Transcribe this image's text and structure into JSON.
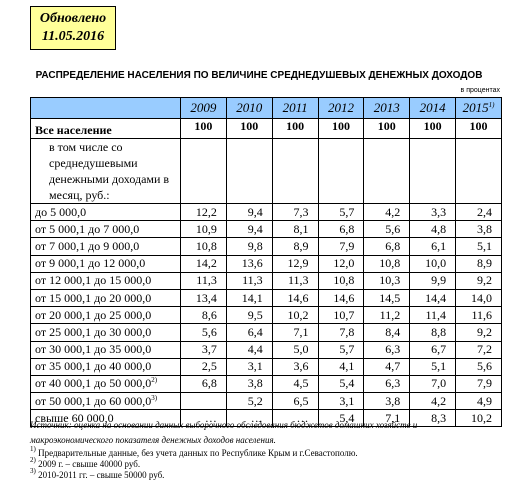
{
  "badge": {
    "line1": "Обновлено",
    "line2": "11.05.2016"
  },
  "title": "РАСПРЕДЕЛЕНИЕ НАСЕЛЕНИЯ ПО ВЕЛИЧИНЕ СРЕДНЕДУШЕВЫХ ДЕНЕЖНЫХ ДОХОДОВ",
  "units": "в процентах",
  "table": {
    "header": [
      {
        "text": "2009"
      },
      {
        "text": "2010"
      },
      {
        "text": "2011"
      },
      {
        "text": "2012"
      },
      {
        "text": "2013"
      },
      {
        "text": "2014"
      },
      {
        "text": "2015",
        "note": "1)"
      }
    ],
    "rows": [
      {
        "label": "Все население",
        "cells": [
          "100",
          "100",
          "100",
          "100",
          "100",
          "100",
          "100"
        ]
      },
      {
        "label": "в том числе со среднедушевыми денежными доходами в месяц, руб.:",
        "cells": [
          null,
          null,
          null,
          null,
          null,
          null,
          null
        ]
      },
      {
        "label": "до 5 000,0",
        "cells": [
          "12,2",
          "9,4",
          "7,3",
          "5,7",
          "4,2",
          "3,3",
          "2,4"
        ]
      },
      {
        "label": "от 5 000,1 до 7 000,0",
        "cells": [
          "10,9",
          "9,4",
          "8,1",
          "6,8",
          "5,6",
          "4,8",
          "3,8"
        ]
      },
      {
        "label": "от 7 000,1 до 9 000,0",
        "cells": [
          "10,8",
          "9,8",
          "8,9",
          "7,9",
          "6,8",
          "6,1",
          "5,1"
        ]
      },
      {
        "label": "от 9 000,1 до 12 000,0",
        "cells": [
          "14,2",
          "13,6",
          "12,9",
          "12,0",
          "10,8",
          "10,0",
          "8,9"
        ]
      },
      {
        "label": "от 12 000,1 до 15 000,0",
        "cells": [
          "11,3",
          "11,3",
          "11,3",
          "10,8",
          "10,3",
          "9,9",
          "9,2"
        ]
      },
      {
        "label": "от 15 000,1 до 20 000,0",
        "cells": [
          "13,4",
          "14,1",
          "14,6",
          "14,6",
          "14,5",
          "14,4",
          "14,0"
        ]
      },
      {
        "label": "от 20 000,1 до 25 000,0",
        "cells": [
          "8,6",
          "9,5",
          "10,2",
          "10,7",
          "11,2",
          "11,4",
          "11,6"
        ]
      },
      {
        "label": "от 25 000,1 до 30 000,0",
        "cells": [
          "5,6",
          "6,4",
          "7,1",
          "7,8",
          "8,4",
          "8,8",
          "9,2"
        ]
      },
      {
        "label": "от 30 000,1 до 35 000,0",
        "cells": [
          "3,7",
          "4,4",
          "5,0",
          "5,7",
          "6,3",
          "6,7",
          "7,2"
        ]
      },
      {
        "label": "от 35 000,1 до 40 000,0",
        "cells": [
          "2,5",
          "3,1",
          "3,6",
          "4,1",
          "4,7",
          "5,1",
          "5,6"
        ]
      },
      {
        "label": "от 40 000,1 до 50 000,0",
        "note": "2)",
        "cells": [
          "6,8",
          "3,8",
          "4,5",
          "5,4",
          "6,3",
          "7,0",
          "7,9"
        ]
      },
      {
        "label": "от 50 000,1 до 60 000,0",
        "note": "3)",
        "cells": [
          null,
          "5,2",
          "6,5",
          "3,1",
          "3,8",
          "4,2",
          "4,9"
        ]
      },
      {
        "label": "свыше 60 000,0",
        "cells": [
          "…",
          "…",
          "…",
          "5,4",
          "7,1",
          "8,3",
          "10,2"
        ]
      }
    ]
  },
  "source": "Источник: оценка на основании данных выборочного обследования бюджетов домашних хозяйств и макроэкономического показателя денежных доходов населения.",
  "notes": [
    {
      "mark": "1)",
      "text": " Предварительные данные, без учета данных по Республике Крым и г.Севастополю."
    },
    {
      "mark": "2)",
      "text": " 2009 г. – свыше 40000 руб."
    },
    {
      "mark": "3)",
      "text": " 2010-2011 гг. – свыше 50000 руб."
    }
  ]
}
